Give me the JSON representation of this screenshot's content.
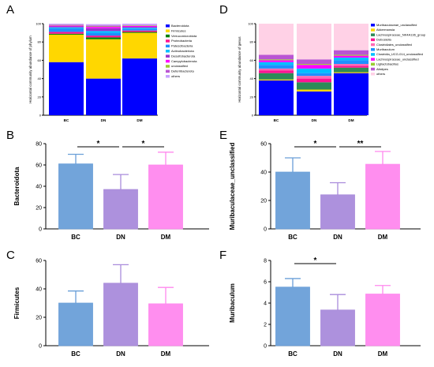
{
  "panels": {
    "A": "A",
    "B": "B",
    "C": "C",
    "D": "D",
    "E": "E",
    "F": "F"
  },
  "chart_data": [
    {
      "id": "A",
      "type": "bar",
      "stacked": true,
      "ylabel": "Horizontal community abundance of phylum",
      "ylim": [
        0,
        100
      ],
      "yticks": [
        "0",
        "20",
        "40",
        "60",
        "80",
        "100"
      ],
      "categories": [
        "BC",
        "DN",
        "DM"
      ],
      "series": [
        {
          "name": "Bacteroidota",
          "color": "#0000ff",
          "values": [
            58,
            40,
            62
          ]
        },
        {
          "name": "Firmicutes",
          "color": "#ffd700",
          "values": [
            30,
            43,
            28
          ]
        },
        {
          "name": "Verrucomicrobiota",
          "color": "#008000",
          "values": [
            1,
            2,
            1
          ]
        },
        {
          "name": "Proteobacteria",
          "color": "#ff1493",
          "values": [
            2,
            2,
            1.5
          ]
        },
        {
          "name": "Patescibacteria",
          "color": "#1e90ff",
          "values": [
            4,
            3,
            2
          ]
        },
        {
          "name": "Actinobacteriota",
          "color": "#00bfff",
          "values": [
            1,
            2,
            1
          ]
        },
        {
          "name": "Desulfobacterota",
          "color": "#9932cc",
          "values": [
            1,
            3,
            1
          ]
        },
        {
          "name": "Campylobacterota",
          "color": "#ff00ff",
          "values": [
            1,
            1.5,
            1
          ]
        },
        {
          "name": "unclassified",
          "color": "#9acd32",
          "values": [
            0.5,
            0.5,
            0.5
          ]
        },
        {
          "name": "Deferribacterota",
          "color": "#ba55d3",
          "values": [
            0.5,
            1,
            0.5
          ]
        },
        {
          "name": "others",
          "color": "#c8a2ff",
          "values": [
            1,
            1.5,
            1.5
          ]
        }
      ]
    },
    {
      "id": "D",
      "type": "bar",
      "stacked": true,
      "ylabel": "Horizontal community abundance of genus",
      "ylim": [
        0,
        100
      ],
      "yticks": [
        "0",
        "20",
        "40",
        "60",
        "80",
        "100"
      ],
      "categories": [
        "BC",
        "DN",
        "DM"
      ],
      "series": [
        {
          "name": "Muribaculaceae_unclassified",
          "color": "#0000ff",
          "values": [
            38,
            26,
            46
          ]
        },
        {
          "name": "Akkermansia",
          "color": "#ffd700",
          "values": [
            1,
            2,
            1
          ]
        },
        {
          "name": "Lachnospiraceae_NK4A136_group",
          "color": "#2e8b57",
          "values": [
            7,
            8,
            5
          ]
        },
        {
          "name": "Dubosiella",
          "color": "#ff1493",
          "values": [
            3,
            4,
            2
          ]
        },
        {
          "name": "Clostridiales_unclassified",
          "color": "#ff69b4",
          "values": [
            2,
            3,
            2
          ]
        },
        {
          "name": "Muribaculum",
          "color": "#1e90ff",
          "values": [
            4,
            3,
            4
          ]
        },
        {
          "name": "Clostridia_UCG-014_unclassified",
          "color": "#00bfff",
          "values": [
            3,
            5,
            3
          ]
        },
        {
          "name": "Lachnospiraceae_unclassified",
          "color": "#ff00ff",
          "values": [
            2,
            4,
            2
          ]
        },
        {
          "name": "Ligilactobacillus",
          "color": "#9acd32",
          "values": [
            1,
            1,
            1
          ]
        },
        {
          "name": "Alistipes",
          "color": "#ba55d3",
          "values": [
            5,
            5,
            5
          ]
        },
        {
          "name": "others",
          "color": "#ffd1e6",
          "values": [
            34,
            39,
            29
          ]
        }
      ]
    },
    {
      "id": "B",
      "type": "bar",
      "ylabel": "Bacteroidota",
      "ylim": [
        0,
        80
      ],
      "yticks": [
        "0",
        "20",
        "40",
        "60",
        "80"
      ],
      "categories": [
        "BC",
        "DN",
        "DM"
      ],
      "values": [
        61,
        37,
        60
      ],
      "errors": [
        9,
        14,
        12
      ],
      "colors": [
        "#6a9fd8",
        "#a98bdb",
        "#ff88ee"
      ],
      "significance": [
        {
          "from": 0,
          "to": 1,
          "label": "*"
        },
        {
          "from": 1,
          "to": 2,
          "label": "*"
        }
      ]
    },
    {
      "id": "E",
      "type": "bar",
      "ylabel": "Muribaculaceae_unclassified",
      "ylim": [
        0,
        60
      ],
      "yticks": [
        "0",
        "20",
        "40",
        "60"
      ],
      "categories": [
        "BC",
        "DN",
        "DM"
      ],
      "values": [
        40,
        24,
        45.5
      ],
      "errors": [
        10,
        8.5,
        9
      ],
      "colors": [
        "#6a9fd8",
        "#a98bdb",
        "#ff88ee"
      ],
      "significance": [
        {
          "from": 0,
          "to": 1,
          "label": "*"
        },
        {
          "from": 1,
          "to": 2,
          "label": "**"
        }
      ]
    },
    {
      "id": "C",
      "type": "bar",
      "ylabel": "Firmicutes",
      "ylim": [
        0,
        60
      ],
      "yticks": [
        "0",
        "20",
        "40",
        "60"
      ],
      "categories": [
        "BC",
        "DN",
        "DM"
      ],
      "values": [
        30,
        44,
        29.5
      ],
      "errors": [
        8.5,
        13,
        11.5
      ],
      "colors": [
        "#6a9fd8",
        "#a98bdb",
        "#ff88ee"
      ],
      "significance": []
    },
    {
      "id": "F",
      "type": "bar",
      "ylabel": "Muribaculum",
      "ylim": [
        0,
        8
      ],
      "yticks": [
        "0",
        "2",
        "4",
        "6",
        "8"
      ],
      "categories": [
        "BC",
        "DN",
        "DM"
      ],
      "values": [
        5.5,
        3.35,
        4.85
      ],
      "errors": [
        0.8,
        1.45,
        0.8
      ],
      "colors": [
        "#6a9fd8",
        "#a98bdb",
        "#ff88ee"
      ],
      "significance": [
        {
          "from": 0,
          "to": 1,
          "label": "*"
        }
      ]
    }
  ]
}
